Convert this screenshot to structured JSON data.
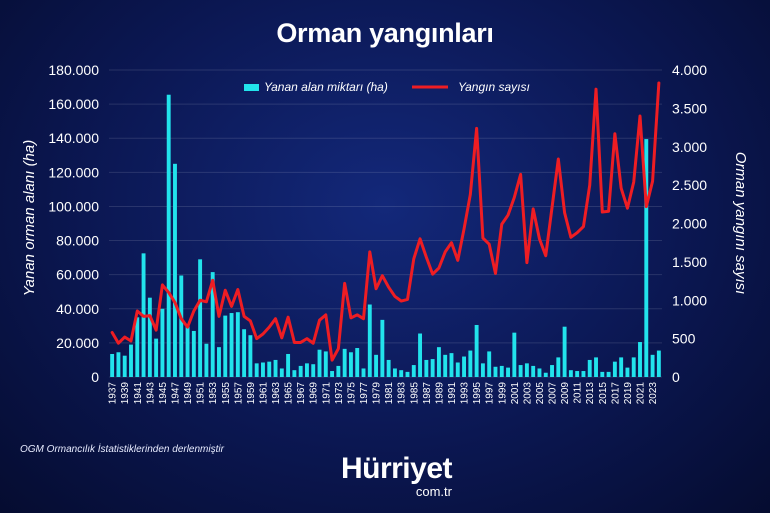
{
  "chart_data": {
    "type": "bar+line",
    "title": "Orman yangınları",
    "source": "OGM Ormancılık İstatistiklerinden derlenmiştir",
    "brand": {
      "name": "Hürriyet",
      "domain": "com.tr"
    },
    "colors": {
      "bars": "#22e3ec",
      "line": "#ee1d23"
    },
    "legend": {
      "placement": "top-center"
    },
    "y_left": {
      "label": "Yanan orman alanı (ha)",
      "ylim": [
        0,
        180000
      ],
      "ticks": [
        0,
        20000,
        40000,
        60000,
        80000,
        100000,
        120000,
        140000,
        160000,
        180000
      ],
      "tick_labels": [
        "0",
        "20.000",
        "40.000",
        "60.000",
        "80.000",
        "100.000",
        "120.000",
        "140.000",
        "160.000",
        "180.000"
      ]
    },
    "y_right": {
      "label": "Orman yangını sayısı",
      "ylim": [
        0,
        4000
      ],
      "ticks": [
        0,
        500,
        1000,
        1500,
        2000,
        2500,
        3000,
        3500,
        4000
      ],
      "tick_labels": [
        "0",
        "500",
        "1.000",
        "1.500",
        "2.000",
        "2.500",
        "3.000",
        "3.500",
        "4.000"
      ]
    },
    "x_tick_labels": [
      "1937",
      "1939",
      "1941",
      "1943",
      "1945",
      "1947",
      "1949",
      "1951",
      "1953",
      "1955",
      "1957",
      "1959",
      "1961",
      "1963",
      "1965",
      "1967",
      "1969",
      "1971",
      "1973",
      "1975",
      "1977",
      "1979",
      "1981",
      "1983",
      "1985",
      "1987",
      "1989",
      "1991",
      "1993",
      "1995",
      "1997",
      "1999",
      "2001",
      "2003",
      "2005",
      "2007",
      "2009",
      "2011",
      "2013",
      "2015",
      "2017",
      "2019",
      "2021",
      "2023"
    ],
    "years": [
      1937,
      1938,
      1939,
      1940,
      1941,
      1942,
      1943,
      1944,
      1945,
      1946,
      1947,
      1948,
      1949,
      1950,
      1951,
      1952,
      1953,
      1954,
      1955,
      1956,
      1957,
      1958,
      1959,
      1960,
      1961,
      1962,
      1963,
      1964,
      1965,
      1966,
      1967,
      1968,
      1969,
      1970,
      1971,
      1972,
      1973,
      1974,
      1975,
      1976,
      1977,
      1978,
      1979,
      1980,
      1981,
      1982,
      1983,
      1984,
      1985,
      1986,
      1987,
      1988,
      1989,
      1990,
      1991,
      1992,
      1993,
      1994,
      1995,
      1996,
      1997,
      1998,
      1999,
      2000,
      2001,
      2002,
      2003,
      2004,
      2005,
      2006,
      2007,
      2008,
      2009,
      2010,
      2011,
      2012,
      2013,
      2014,
      2015,
      2016,
      2017,
      2018,
      2019,
      2020,
      2021,
      2022,
      2023,
      2024
    ],
    "series": [
      {
        "name": "Yanan alan miktarı (ha)",
        "type": "bar",
        "axis": "left",
        "values": [
          13500,
          14500,
          12500,
          19000,
          35000,
          72500,
          46500,
          22500,
          40000,
          165500,
          125000,
          59500,
          30000,
          27000,
          69000,
          19500,
          61500,
          17500,
          36000,
          37500,
          38000,
          28000,
          24500,
          8000,
          8500,
          9000,
          10000,
          5000,
          13500,
          4000,
          6500,
          8000,
          7500,
          16000,
          15000,
          3500,
          6500,
          16500,
          14500,
          17000,
          5000,
          42500,
          13000,
          33500,
          10000,
          5000,
          4000,
          3000,
          7000,
          25500,
          10000,
          10500,
          17500,
          13000,
          14000,
          8500,
          12000,
          15500,
          30500,
          8000,
          15000,
          6000,
          6500,
          5500,
          26000,
          7000,
          8000,
          6500,
          5000,
          2500,
          7000,
          11500,
          29500,
          4000,
          3500,
          3500,
          10000,
          11500,
          3000,
          3000,
          9000,
          11500,
          5500,
          11500,
          20500,
          139500,
          13000,
          15500
        ]
      },
      {
        "name": "Yangın sayısı",
        "type": "line",
        "axis": "right",
        "values": [
          580,
          440,
          520,
          470,
          860,
          790,
          800,
          610,
          1200,
          1100,
          970,
          760,
          650,
          860,
          1000,
          980,
          1260,
          790,
          1130,
          920,
          1140,
          790,
          730,
          500,
          560,
          650,
          760,
          510,
          780,
          450,
          450,
          500,
          440,
          740,
          810,
          220,
          370,
          1220,
          770,
          810,
          760,
          1630,
          1150,
          1320,
          1170,
          1050,
          990,
          1010,
          1540,
          1800,
          1560,
          1340,
          1420,
          1630,
          1750,
          1520,
          1930,
          2380,
          3240,
          1810,
          1730,
          1350,
          1990,
          2110,
          2340,
          2640,
          1490,
          2190,
          1800,
          1580,
          2210,
          2840,
          2140,
          1820,
          1880,
          1960,
          2500,
          3750,
          2150,
          2160,
          3170,
          2460,
          2200,
          2540,
          3400,
          2220,
          2550,
          3830
        ]
      }
    ]
  }
}
